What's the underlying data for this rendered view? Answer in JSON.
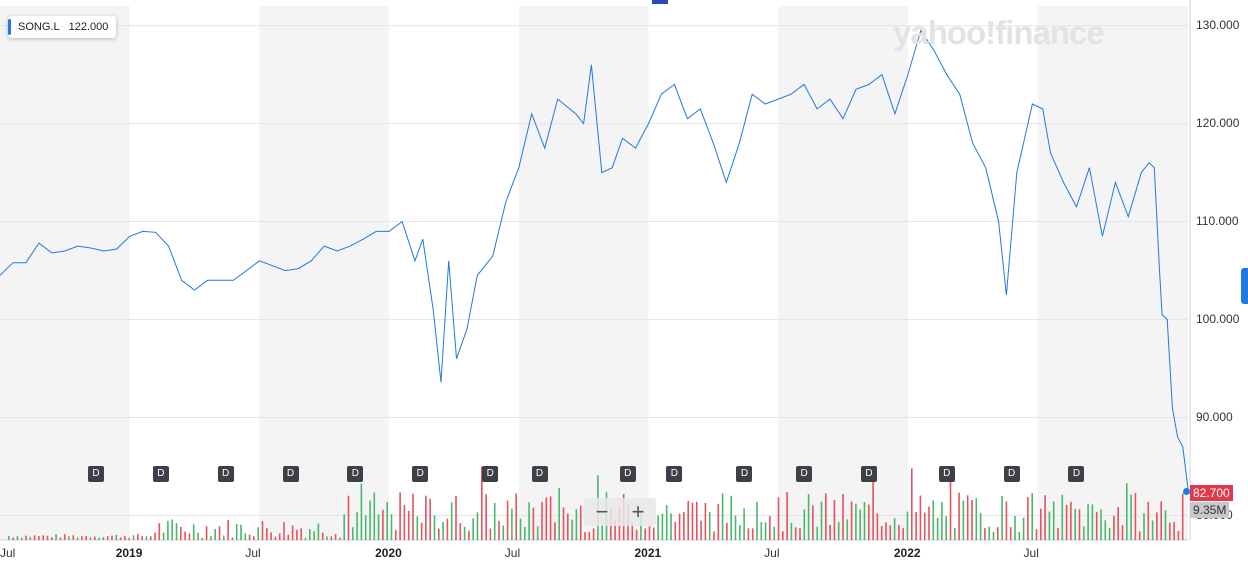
{
  "legend": {
    "symbol": "SONG.L",
    "value": "122.000"
  },
  "logo": "yahoo!finance",
  "current_price": "82.700",
  "current_volume": "9.35M",
  "dividend_marker_label": "D",
  "dividend_marker_dates": [
    2018.87,
    2019.12,
    2019.37,
    2019.62,
    2019.87,
    2020.12,
    2020.39,
    2020.58,
    2020.92,
    2021.1,
    2021.37,
    2021.6,
    2021.85,
    2022.15,
    2022.4,
    2022.65
  ],
  "zoom_controls": {
    "out": "−",
    "in": "+"
  },
  "colors": {
    "line": "#1f7ae0",
    "vol_up": "#49b86a",
    "vol_down": "#e6525f",
    "shade": "#f4f4f4",
    "price_tag": "#e0394a"
  },
  "chart_data": {
    "type": "line",
    "series": [
      {
        "name": "SONG.L",
        "points": [
          [
            2018.5,
            104.5
          ],
          [
            2018.55,
            105.8
          ],
          [
            2018.6,
            105.8
          ],
          [
            2018.65,
            107.8
          ],
          [
            2018.7,
            106.8
          ],
          [
            2018.75,
            107.0
          ],
          [
            2018.8,
            107.5
          ],
          [
            2018.85,
            107.3
          ],
          [
            2018.9,
            107.0
          ],
          [
            2018.95,
            107.2
          ],
          [
            2019.0,
            108.5
          ],
          [
            2019.05,
            109.0
          ],
          [
            2019.1,
            108.9
          ],
          [
            2019.15,
            107.5
          ],
          [
            2019.2,
            104.0
          ],
          [
            2019.25,
            103.0
          ],
          [
            2019.3,
            104.0
          ],
          [
            2019.35,
            104.0
          ],
          [
            2019.4,
            104.0
          ],
          [
            2019.45,
            105.0
          ],
          [
            2019.5,
            106.0
          ],
          [
            2019.55,
            105.5
          ],
          [
            2019.6,
            105.0
          ],
          [
            2019.65,
            105.2
          ],
          [
            2019.7,
            106.0
          ],
          [
            2019.75,
            107.5
          ],
          [
            2019.8,
            107.0
          ],
          [
            2019.85,
            107.5
          ],
          [
            2019.9,
            108.2
          ],
          [
            2019.95,
            109.0
          ],
          [
            2020.0,
            109.0
          ],
          [
            2020.05,
            110.0
          ],
          [
            2020.1,
            106.0
          ],
          [
            2020.13,
            108.2
          ],
          [
            2020.17,
            101.0
          ],
          [
            2020.2,
            93.6
          ],
          [
            2020.23,
            106.0
          ],
          [
            2020.26,
            96.0
          ],
          [
            2020.3,
            99.0
          ],
          [
            2020.34,
            104.5
          ],
          [
            2020.4,
            106.5
          ],
          [
            2020.45,
            112.0
          ],
          [
            2020.5,
            115.5
          ],
          [
            2020.55,
            121.0
          ],
          [
            2020.6,
            117.5
          ],
          [
            2020.65,
            122.5
          ],
          [
            2020.72,
            121.0
          ],
          [
            2020.75,
            120.0
          ],
          [
            2020.78,
            126.0
          ],
          [
            2020.82,
            115.0
          ],
          [
            2020.86,
            115.5
          ],
          [
            2020.9,
            118.5
          ],
          [
            2020.95,
            117.5
          ],
          [
            2021.0,
            120.0
          ],
          [
            2021.05,
            123.0
          ],
          [
            2021.1,
            124.0
          ],
          [
            2021.15,
            120.5
          ],
          [
            2021.2,
            121.5
          ],
          [
            2021.25,
            118.0
          ],
          [
            2021.3,
            114.0
          ],
          [
            2021.35,
            118.0
          ],
          [
            2021.4,
            123.0
          ],
          [
            2021.45,
            122.0
          ],
          [
            2021.5,
            122.5
          ],
          [
            2021.55,
            123.0
          ],
          [
            2021.6,
            124.0
          ],
          [
            2021.65,
            121.5
          ],
          [
            2021.7,
            122.5
          ],
          [
            2021.75,
            120.5
          ],
          [
            2021.8,
            123.5
          ],
          [
            2021.85,
            124.0
          ],
          [
            2021.9,
            125.0
          ],
          [
            2021.95,
            121.0
          ],
          [
            2022.0,
            125.0
          ],
          [
            2022.05,
            129.5
          ],
          [
            2022.1,
            127.5
          ],
          [
            2022.15,
            125.0
          ],
          [
            2022.2,
            123.0
          ],
          [
            2022.25,
            118.0
          ],
          [
            2022.3,
            115.5
          ],
          [
            2022.35,
            110.0
          ],
          [
            2022.38,
            102.5
          ],
          [
            2022.42,
            115.0
          ],
          [
            2022.48,
            122.0
          ],
          [
            2022.52,
            121.5
          ],
          [
            2022.55,
            117.0
          ],
          [
            2022.6,
            114.0
          ],
          [
            2022.65,
            111.5
          ],
          [
            2022.7,
            115.5
          ],
          [
            2022.75,
            108.5
          ],
          [
            2022.8,
            114.0
          ],
          [
            2022.85,
            110.5
          ],
          [
            2022.9,
            115.0
          ],
          [
            2022.93,
            116.0
          ],
          [
            2022.95,
            115.5
          ],
          [
            2022.97,
            105.0
          ],
          [
            2022.98,
            100.5
          ],
          [
            2023.0,
            100.0
          ],
          [
            2023.02,
            91.0
          ],
          [
            2023.04,
            88.0
          ],
          [
            2023.06,
            87.0
          ],
          [
            2023.08,
            82.7
          ]
        ]
      }
    ],
    "x_axis": {
      "ticks": [
        {
          "v": 2018.5,
          "label": "Jul"
        },
        {
          "v": 2019.0,
          "label": "2019"
        },
        {
          "v": 2019.5,
          "label": "Jul"
        },
        {
          "v": 2020.0,
          "label": "2020"
        },
        {
          "v": 2020.5,
          "label": "Jul"
        },
        {
          "v": 2021.0,
          "label": "2021"
        },
        {
          "v": 2021.5,
          "label": "Jul"
        },
        {
          "v": 2022.0,
          "label": "2022"
        },
        {
          "v": 2022.5,
          "label": "Jul"
        }
      ],
      "range": [
        2018.5,
        2023.08
      ]
    },
    "y_axis": {
      "range": [
        77.5,
        132
      ],
      "ticks": [
        "130.000",
        "120.000",
        "110.000",
        "100.000",
        "90.000",
        "80.000"
      ]
    },
    "grid": true,
    "volume_bars": "shown at bottom, heights not labeled"
  }
}
